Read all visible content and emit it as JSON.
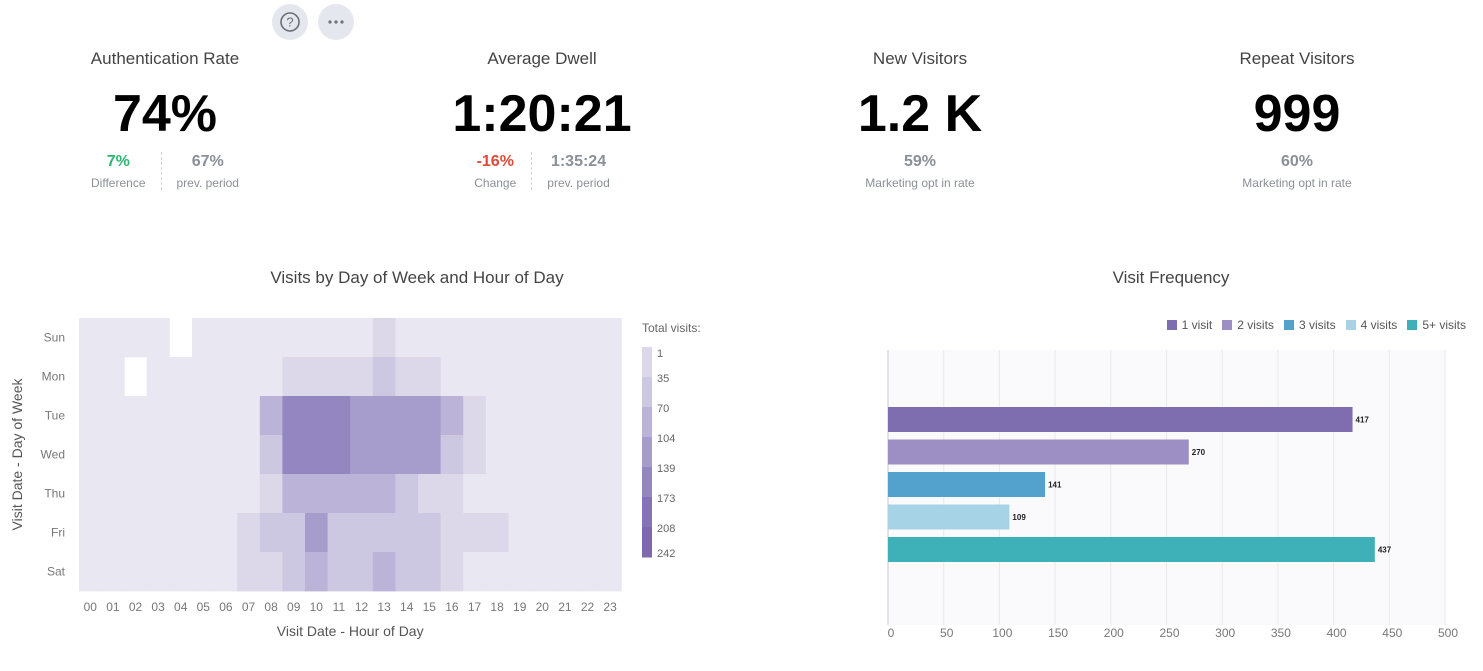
{
  "toolbar": {
    "help_icon": "question-circle-icon",
    "more_icon": "more-horizontal-icon"
  },
  "kpis": [
    {
      "title": "Authentication Rate",
      "value": "74%",
      "subs": [
        {
          "value": "7%",
          "label": "Difference",
          "tone": "green"
        },
        {
          "value": "67%",
          "label": "prev. period",
          "tone": "gray"
        }
      ]
    },
    {
      "title": "Average Dwell",
      "value": "1:20:21",
      "subs": [
        {
          "value": "-16%",
          "label": "Change",
          "tone": "red"
        },
        {
          "value": "1:35:24",
          "label": "prev. period",
          "tone": "gray"
        }
      ]
    },
    {
      "title": "New Visitors",
      "value": "1.2 K",
      "subs": [
        {
          "value": "59%",
          "label": "Marketing opt in rate",
          "tone": "gray"
        }
      ]
    },
    {
      "title": "Repeat Visitors",
      "value": "999",
      "subs": [
        {
          "value": "60%",
          "label": "Marketing opt in rate",
          "tone": "gray"
        }
      ]
    }
  ],
  "colors": {
    "green": "#2bb673",
    "red": "#e04a3a",
    "gray": "#8a9099"
  },
  "chart_data": [
    {
      "type": "heatmap",
      "title": "Visits by Day of Week and Hour of Day",
      "xlabel": "Visit Date - Hour of Day",
      "ylabel": "Visit Date - Day of Week",
      "x": [
        "00",
        "01",
        "02",
        "03",
        "04",
        "05",
        "06",
        "07",
        "08",
        "09",
        "10",
        "11",
        "12",
        "13",
        "14",
        "15",
        "16",
        "17",
        "18",
        "19",
        "20",
        "21",
        "22",
        "23"
      ],
      "y": [
        "Sun",
        "Mon",
        "Tue",
        "Wed",
        "Thu",
        "Fri",
        "Sat"
      ],
      "levels": [
        [
          0,
          0,
          0,
          0,
          null,
          0,
          0,
          0,
          0,
          0,
          0,
          0,
          0,
          1,
          0,
          0,
          0,
          0,
          0,
          0,
          0,
          0,
          0,
          0
        ],
        [
          0,
          0,
          null,
          0,
          0,
          0,
          0,
          0,
          0,
          1,
          1,
          1,
          1,
          2,
          1,
          1,
          0,
          0,
          0,
          0,
          0,
          0,
          0,
          0
        ],
        [
          0,
          0,
          0,
          0,
          0,
          0,
          0,
          0,
          3,
          5,
          5,
          5,
          4,
          4,
          4,
          4,
          3,
          1,
          0,
          0,
          0,
          0,
          0,
          0
        ],
        [
          0,
          0,
          0,
          0,
          0,
          0,
          0,
          0,
          2,
          5,
          5,
          5,
          4,
          4,
          4,
          4,
          2,
          1,
          0,
          0,
          0,
          0,
          0,
          0
        ],
        [
          0,
          0,
          0,
          0,
          0,
          0,
          0,
          0,
          1,
          3,
          3,
          3,
          3,
          3,
          2,
          1,
          1,
          0,
          0,
          0,
          0,
          0,
          0,
          0
        ],
        [
          0,
          0,
          0,
          0,
          0,
          0,
          0,
          1,
          2,
          2,
          4,
          2,
          2,
          2,
          2,
          2,
          1,
          1,
          1,
          0,
          0,
          0,
          0,
          0
        ],
        [
          0,
          0,
          0,
          0,
          0,
          0,
          0,
          1,
          1,
          2,
          3,
          2,
          2,
          3,
          2,
          2,
          1,
          0,
          0,
          0,
          0,
          0,
          0,
          0
        ]
      ],
      "legend": {
        "title": "Total visits:",
        "labels": [
          "1",
          "35",
          "70",
          "104",
          "139",
          "173",
          "208",
          "242"
        ],
        "colors": [
          "#e9e7f1",
          "#dcd8ea",
          "#cdc8e2",
          "#bbb3d8",
          "#a79dcc",
          "#9487c1",
          "#8474b6",
          "#7e69ae"
        ]
      }
    },
    {
      "type": "bar",
      "orientation": "horizontal",
      "title": "Visit Frequency",
      "categories": [
        "1 visit",
        "2 visits",
        "3 visits",
        "4 visits",
        "5+ visits"
      ],
      "values": [
        417,
        270,
        141,
        109,
        437
      ],
      "colors": [
        "#7e6daf",
        "#9d8ec3",
        "#52a2cd",
        "#a6d3e6",
        "#3db0b8"
      ],
      "xlim": [
        0,
        500
      ],
      "xticks": [
        0,
        50,
        100,
        150,
        200,
        250,
        300,
        350,
        400,
        450,
        500
      ]
    }
  ]
}
